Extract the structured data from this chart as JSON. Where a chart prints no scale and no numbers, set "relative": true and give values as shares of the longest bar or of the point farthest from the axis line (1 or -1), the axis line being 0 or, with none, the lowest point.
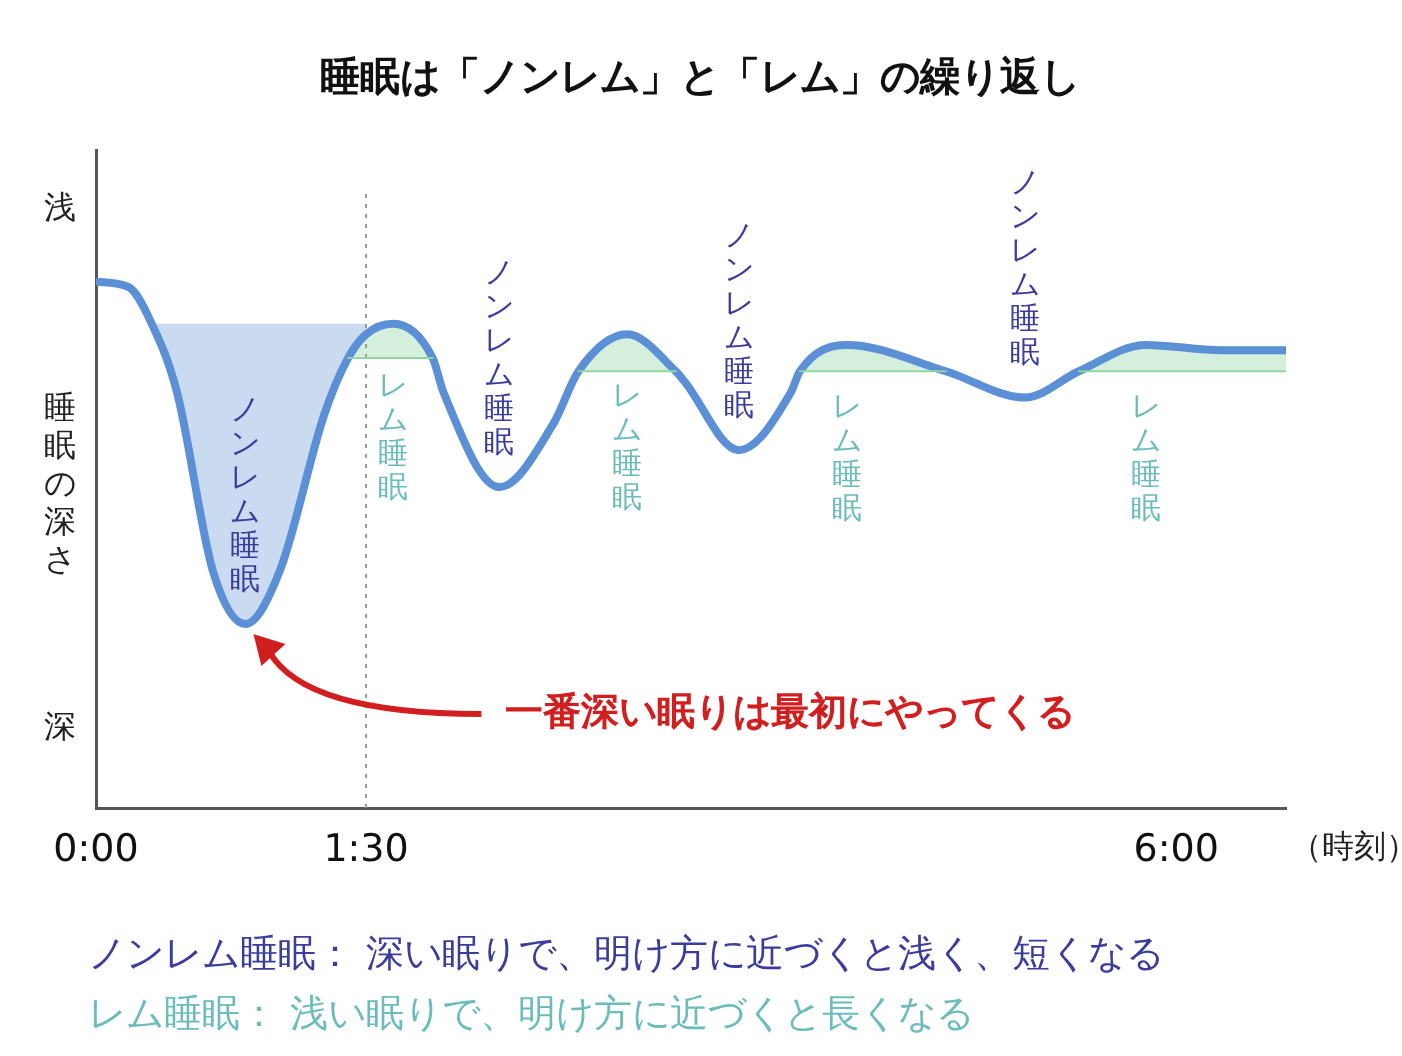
{
  "chart_data": {
    "type": "line",
    "relative": true,
    "title": "睡眠は「ノンレム」と「レム」の繰り返し",
    "ylabel": "睡眠の深さ",
    "xlabel": "（時刻）",
    "xlim": [
      0,
      6.61
    ],
    "xticks": [
      {
        "value": 0,
        "label": "0:00"
      },
      {
        "value": 1.5,
        "label": "1:30"
      },
      {
        "value": 6,
        "label": "6:00"
      }
    ],
    "x": [
      0,
      0.18,
      0.31,
      0.45,
      0.65,
      0.83,
      1.02,
      1.27,
      1.4,
      1.5,
      1.65,
      1.87,
      1.93,
      2.24,
      2.54,
      2.68,
      2.95,
      3.22,
      3.27,
      3.57,
      3.86,
      3.91,
      4.17,
      4.72,
      5.16,
      5.46,
      5.83,
      6.25,
      6.61
    ],
    "series": [
      {
        "color": "#5b8fd6",
        "values": [
          1.0,
          0.99,
          0.92,
          0.79,
          0.45,
          0.35,
          0.45,
          0.75,
          0.855,
          0.9,
          0.92,
          0.855,
          0.79,
          0.61,
          0.73,
          0.83,
          0.9,
          0.83,
          0.81,
          0.68,
          0.79,
          0.83,
          0.88,
          0.83,
          0.78,
          0.83,
          0.88,
          0.87,
          0.87
        ],
        "lower": [
          null,
          null,
          0.92,
          0.79,
          0.45,
          0.35,
          0.45,
          0.75,
          0.855,
          0.9,
          null,
          null,
          null,
          null,
          null,
          null,
          null,
          null,
          null,
          null,
          null,
          null,
          null,
          null,
          null,
          null,
          null,
          null,
          null
        ],
        "upper": [
          null,
          null,
          0.92,
          0.92,
          0.92,
          0.92,
          0.92,
          0.92,
          0.92,
          0.92,
          null,
          null,
          null,
          null,
          null,
          null,
          null,
          null,
          null,
          null,
          null,
          null,
          null,
          null,
          null,
          null,
          null,
          null,
          null
        ]
      },
      {
        "color": "#8fd6a0",
        "values": [
          null,
          null,
          null,
          null,
          null,
          null,
          null,
          null,
          0.855,
          0.855,
          0.855,
          0.855,
          null,
          null,
          null,
          0.83,
          0.83,
          0.83,
          null,
          null,
          null,
          0.83,
          0.83,
          0.83,
          null,
          0.83,
          0.83,
          0.83,
          0.83
        ],
        "lower": [
          null,
          null,
          null,
          null,
          null,
          null,
          null,
          null,
          0.855,
          0.855,
          0.855,
          0.855,
          null,
          null,
          null,
          0.83,
          0.83,
          0.83,
          null,
          null,
          null,
          0.83,
          0.83,
          0.83,
          null,
          0.83,
          0.83,
          0.83,
          0.83
        ],
        "upper": [
          null,
          null,
          null,
          null,
          null,
          null,
          null,
          null,
          0.855,
          0.9,
          0.92,
          0.855,
          null,
          null,
          null,
          0.83,
          0.9,
          0.83,
          null,
          null,
          null,
          0.83,
          0.88,
          0.83,
          null,
          0.83,
          0.88,
          0.87,
          0.87
        ]
      }
    ],
    "ref_lines": [
      {
        "axis": "x",
        "value": 1.5,
        "color": "#999999",
        "line_style": "dotted"
      }
    ],
    "grid": false,
    "legend": false,
    "marker": "none",
    "line_style": "solid",
    "annotations": [
      "浅",
      "深",
      "ノンレム睡眠",
      "レム睡眠",
      "ノンレム睡眠",
      "レム睡眠",
      "ノンレム睡眠",
      "レム睡眠",
      "ノンレム睡眠",
      "レム睡眠",
      "一番深い眠りは最初にやってくる",
      "ノンレム睡眠： 深い眠りで、明け方に近づくと浅く、短くなる",
      "レム睡眠： 浅い眠りで、明け方に近づくと長くなる"
    ]
  }
}
